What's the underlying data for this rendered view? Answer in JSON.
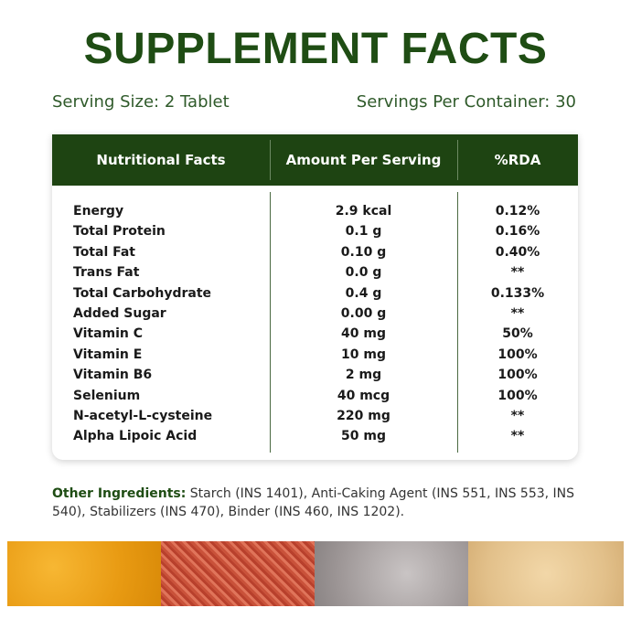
{
  "title": "SUPPLEMENT FACTS",
  "serving_size": "Serving Size: 2 Tablet",
  "servings_per_container": "Servings Per Container: 30",
  "table": {
    "columns": [
      "Nutritional Facts",
      "Amount Per Serving",
      "%RDA"
    ],
    "rows": [
      [
        "Energy",
        "2.9 kcal",
        "0.12%"
      ],
      [
        "Total Protein",
        "0.1 g",
        "0.16%"
      ],
      [
        "Total Fat",
        "0.10 g",
        "0.40%"
      ],
      [
        "Trans Fat",
        "0.0 g",
        "**"
      ],
      [
        "Total Carbohydrate",
        "0.4 g",
        "0.133%"
      ],
      [
        "Added Sugar",
        "0.00 g",
        "**"
      ],
      [
        "Vitamin C",
        "40 mg",
        "50%"
      ],
      [
        "Vitamin E",
        "10 mg",
        "100%"
      ],
      [
        "Vitamin B6",
        "2 mg",
        "100%"
      ],
      [
        "Selenium",
        "40 mcg",
        "100%"
      ],
      [
        "N-acetyl-L-cysteine",
        "220 mg",
        "**"
      ],
      [
        "Alpha Lipoic Acid",
        "50 mg",
        "**"
      ]
    ]
  },
  "other_ingredients": {
    "label": "Other Ingredients:",
    "text": "Starch (INS 1401), Anti-Caking Agent (INS 551, INS 553, INS 540), Stabilizers (INS 470), Binder (INS 460, INS 1202)."
  }
}
